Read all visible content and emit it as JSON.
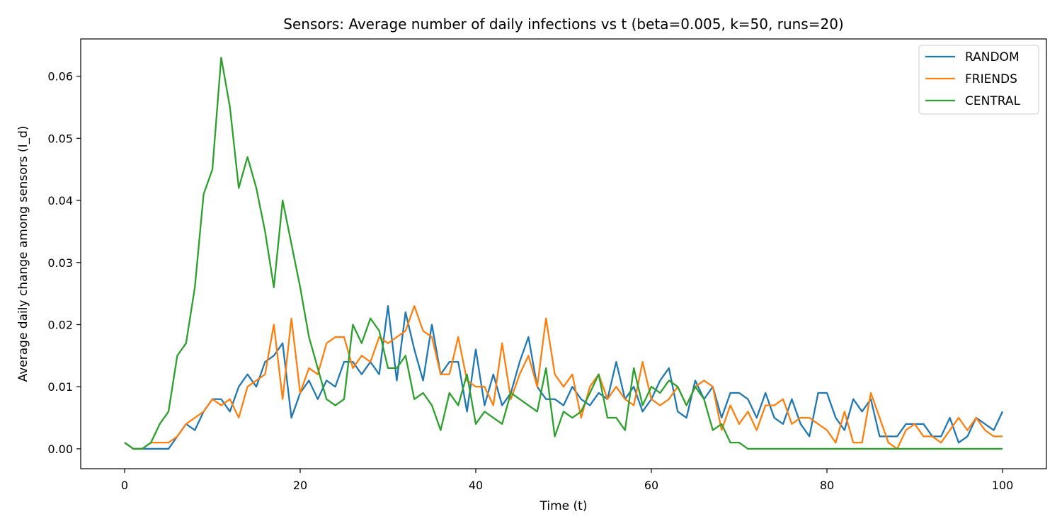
{
  "chart_data": {
    "type": "line",
    "title": "Sensors: Average number of daily infections vs t (beta=0.005, k=50, runs=20)",
    "xlabel": "Time (t)",
    "ylabel": "Average daily change among sensors (I_d)",
    "xlim": [
      -5,
      105
    ],
    "ylim": [
      -0.0032,
      0.066
    ],
    "xticks": [
      0,
      20,
      40,
      60,
      80,
      100
    ],
    "xtick_labels": [
      "0",
      "20",
      "40",
      "60",
      "80",
      "100"
    ],
    "yticks": [
      0,
      0.01,
      0.02,
      0.03,
      0.04,
      0.05,
      0.06
    ],
    "ytick_labels": [
      "0.00",
      "0.01",
      "0.02",
      "0.03",
      "0.04",
      "0.05",
      "0.06"
    ],
    "grid": false,
    "legend": "upper-right",
    "series": [
      {
        "name": "RANDOM",
        "color": "#1f77b4",
        "values": [
          0.001,
          0,
          0,
          0,
          0,
          0,
          0.002,
          0.004,
          0.003,
          0.006,
          0.008,
          0.008,
          0.006,
          0.01,
          0.012,
          0.01,
          0.014,
          0.015,
          0.017,
          0.005,
          0.009,
          0.011,
          0.008,
          0.011,
          0.01,
          0.014,
          0.014,
          0.012,
          0.014,
          0.012,
          0.023,
          0.011,
          0.022,
          0.016,
          0.011,
          0.02,
          0.012,
          0.014,
          0.014,
          0.006,
          0.016,
          0.007,
          0.012,
          0.007,
          0.009,
          0.014,
          0.018,
          0.01,
          0.008,
          0.008,
          0.007,
          0.01,
          0.008,
          0.007,
          0.009,
          0.008,
          0.014,
          0.008,
          0.01,
          0.006,
          0.008,
          0.011,
          0.013,
          0.006,
          0.005,
          0.011,
          0.008,
          0.01,
          0.005,
          0.009,
          0.009,
          0.008,
          0.005,
          0.009,
          0.005,
          0.004,
          0.008,
          0.004,
          0.002,
          0.009,
          0.009,
          0.005,
          0.003,
          0.008,
          0.006,
          0.008,
          0.002,
          0.002,
          0.002,
          0.004,
          0.004,
          0.004,
          0.002,
          0.002,
          0.005,
          0.001,
          0.002,
          0.005,
          0.004,
          0.003,
          0.006
        ]
      },
      {
        "name": "FRIENDS",
        "color": "#ff7f0e",
        "values": [
          0.001,
          0,
          0,
          0.001,
          0.001,
          0.001,
          0.002,
          0.004,
          0.005,
          0.006,
          0.008,
          0.007,
          0.008,
          0.005,
          0.01,
          0.011,
          0.012,
          0.02,
          0.008,
          0.021,
          0.009,
          0.013,
          0.012,
          0.017,
          0.018,
          0.018,
          0.013,
          0.015,
          0.014,
          0.018,
          0.017,
          0.018,
          0.019,
          0.023,
          0.019,
          0.018,
          0.012,
          0.012,
          0.018,
          0.011,
          0.01,
          0.01,
          0.007,
          0.017,
          0.008,
          0.012,
          0.015,
          0.01,
          0.021,
          0.012,
          0.01,
          0.012,
          0.005,
          0.01,
          0.012,
          0.008,
          0.01,
          0.008,
          0.007,
          0.014,
          0.008,
          0.007,
          0.008,
          0.01,
          0.007,
          0.01,
          0.011,
          0.01,
          0.003,
          0.007,
          0.004,
          0.006,
          0.003,
          0.007,
          0.007,
          0.008,
          0.004,
          0.005,
          0.005,
          0.004,
          0.003,
          0.001,
          0.006,
          0.001,
          0.001,
          0.009,
          0.005,
          0.001,
          0,
          0.003,
          0.004,
          0.002,
          0.002,
          0.001,
          0.003,
          0.005,
          0.003,
          0.005,
          0.003,
          0.002,
          0.002
        ]
      },
      {
        "name": "CENTRAL",
        "color": "#2ca02c",
        "values": [
          0.001,
          0,
          0,
          0.001,
          0.004,
          0.006,
          0.015,
          0.017,
          0.026,
          0.041,
          0.045,
          0.063,
          0.055,
          0.042,
          0.047,
          0.042,
          0.035,
          0.026,
          0.04,
          0.033,
          0.026,
          0.018,
          0.013,
          0.008,
          0.007,
          0.008,
          0.02,
          0.017,
          0.021,
          0.019,
          0.013,
          0.013,
          0.015,
          0.008,
          0.009,
          0.007,
          0.003,
          0.009,
          0.007,
          0.012,
          0.004,
          0.006,
          0.005,
          0.004,
          0.009,
          0.008,
          0.007,
          0.006,
          0.013,
          0.002,
          0.006,
          0.005,
          0.006,
          0.009,
          0.012,
          0.005,
          0.005,
          0.003,
          0.013,
          0.007,
          0.01,
          0.009,
          0.011,
          0.01,
          0.007,
          0.01,
          0.008,
          0.003,
          0.004,
          0.001,
          0.001,
          0,
          0,
          0,
          0,
          0,
          0,
          0,
          0,
          0,
          0,
          0,
          0,
          0,
          0,
          0,
          0,
          0,
          0,
          0,
          0,
          0,
          0,
          0,
          0,
          0,
          0,
          0,
          0,
          0,
          0
        ]
      }
    ]
  }
}
